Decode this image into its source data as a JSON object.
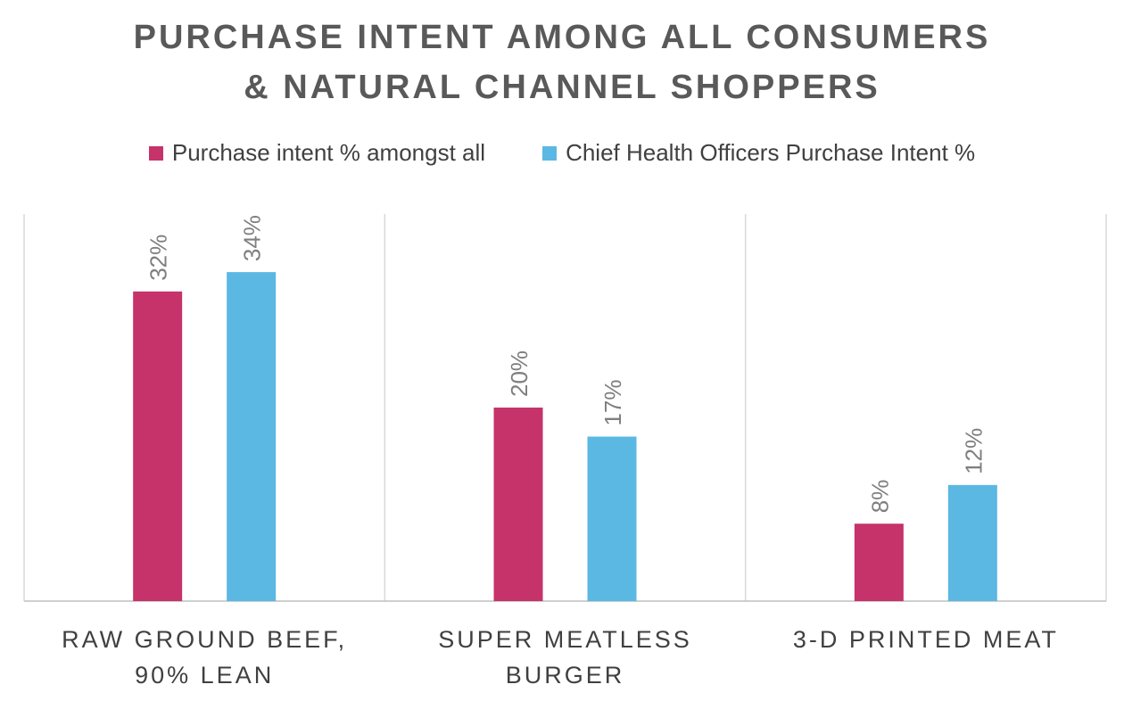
{
  "chart_data": {
    "type": "bar",
    "title_lines": [
      "PURCHASE INTENT AMONG ALL CONSUMERS",
      "& NATURAL CHANNEL SHOPPERS"
    ],
    "categories": [
      [
        "RAW GROUND BEEF,",
        "90% LEAN"
      ],
      [
        "SUPER MEATLESS",
        "BURGER"
      ],
      [
        "3-D PRINTED MEAT"
      ]
    ],
    "series": [
      {
        "name": "Purchase intent % amongst all",
        "values": [
          32,
          20,
          8
        ],
        "labels": [
          "32%",
          "20%",
          "8%"
        ],
        "color": "#C5336A"
      },
      {
        "name": "Chief Health Officers Purchase Intent %",
        "values": [
          34,
          17,
          12
        ],
        "labels": [
          "34%",
          "17%",
          "12%"
        ],
        "color": "#5BB8E2"
      }
    ],
    "ylim": [
      0,
      40
    ],
    "grid": false,
    "legend_position": "top"
  }
}
